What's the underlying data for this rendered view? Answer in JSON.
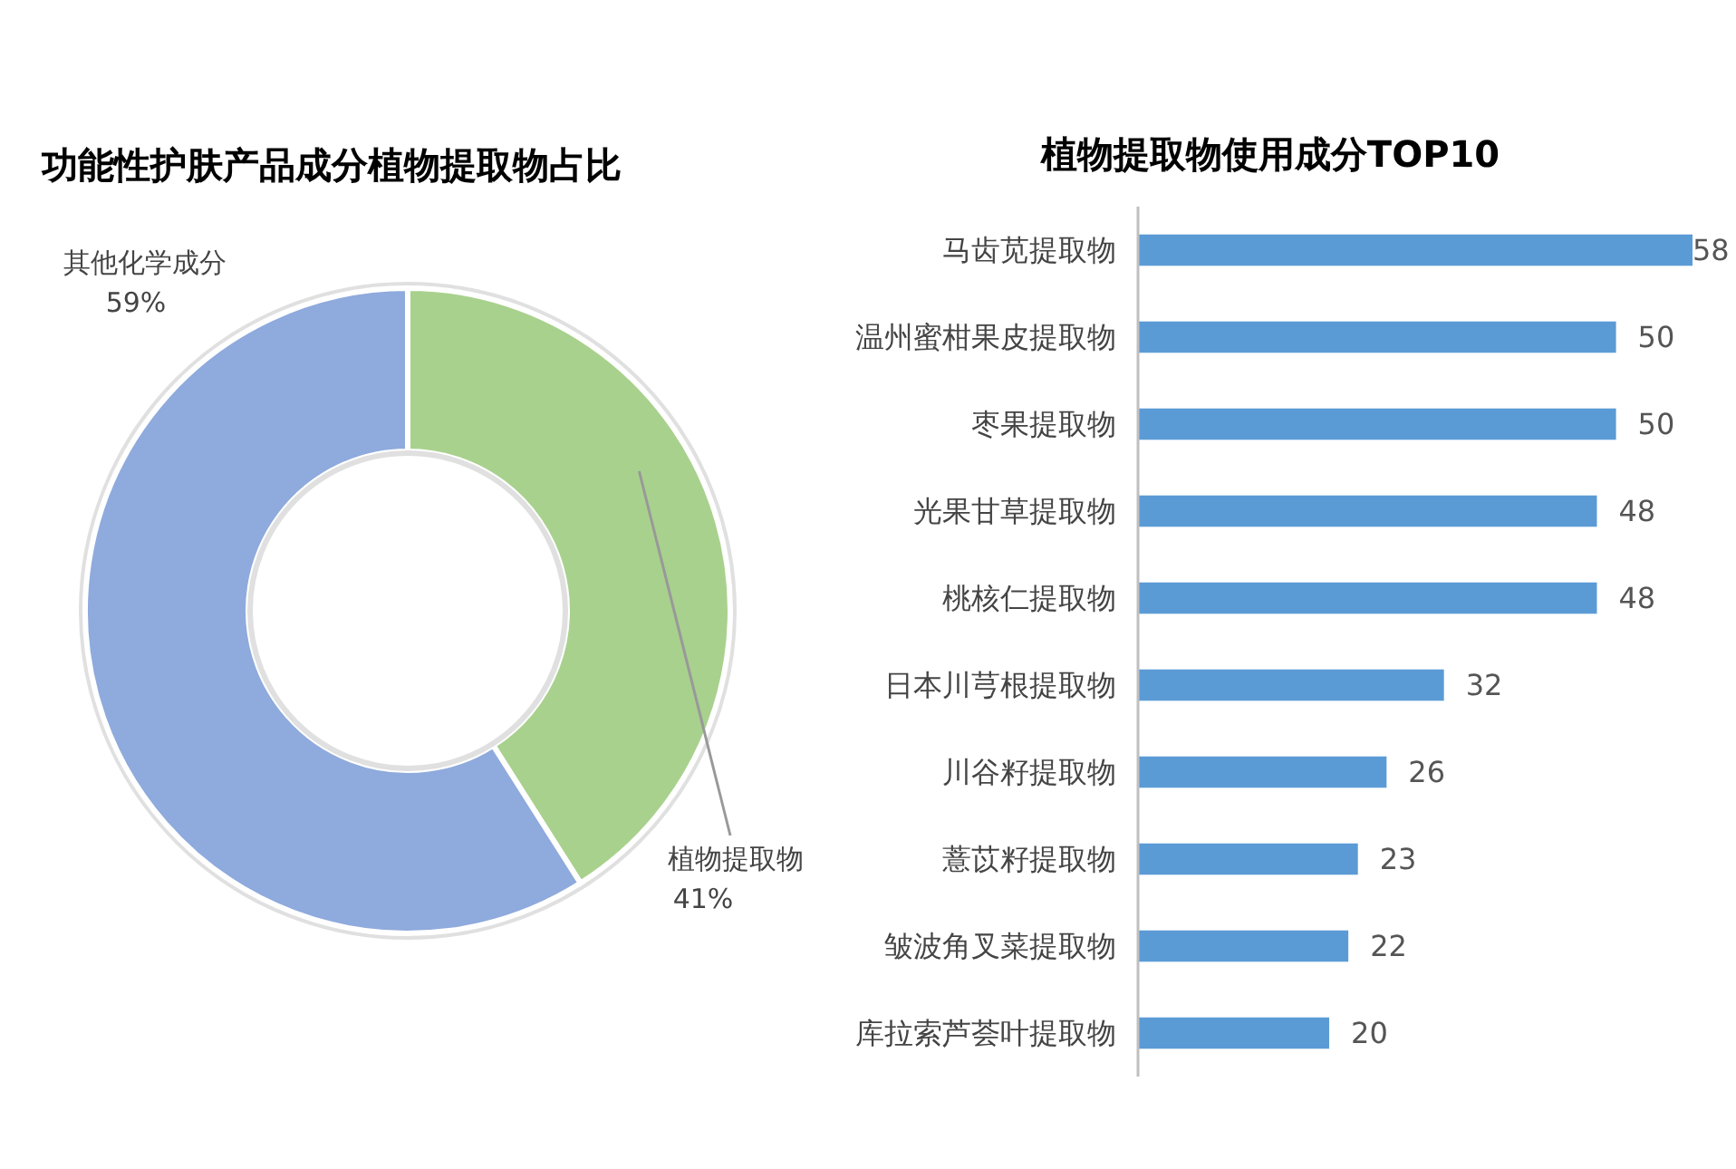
{
  "chart_data": [
    {
      "type": "donut",
      "title": "功能性护肤产品成分植物提取物占比",
      "categories": [
        "植物提取物",
        "其他化学成分"
      ],
      "values": [
        41,
        59
      ],
      "colors": [
        "#a9d18e",
        "#8faadc"
      ],
      "value_labels": [
        "41%",
        "59%"
      ]
    },
    {
      "type": "bar",
      "title": "植物提取物使用成分TOP10",
      "orientation": "horizontal",
      "categories": [
        "马齿苋提取物",
        "温州蜜柑果皮提取物",
        "枣果提取物",
        "光果甘草提取物",
        "桃核仁提取物",
        "日本川芎根提取物",
        "川谷籽提取物",
        "薏苡籽提取物",
        "皱波角叉菜提取物",
        "库拉索芦荟叶提取物"
      ],
      "values": [
        58,
        50,
        50,
        48,
        48,
        32,
        26,
        23,
        22,
        20
      ],
      "color": "#5b9bd5",
      "data_labels": true,
      "tick_labels": "y"
    }
  ]
}
